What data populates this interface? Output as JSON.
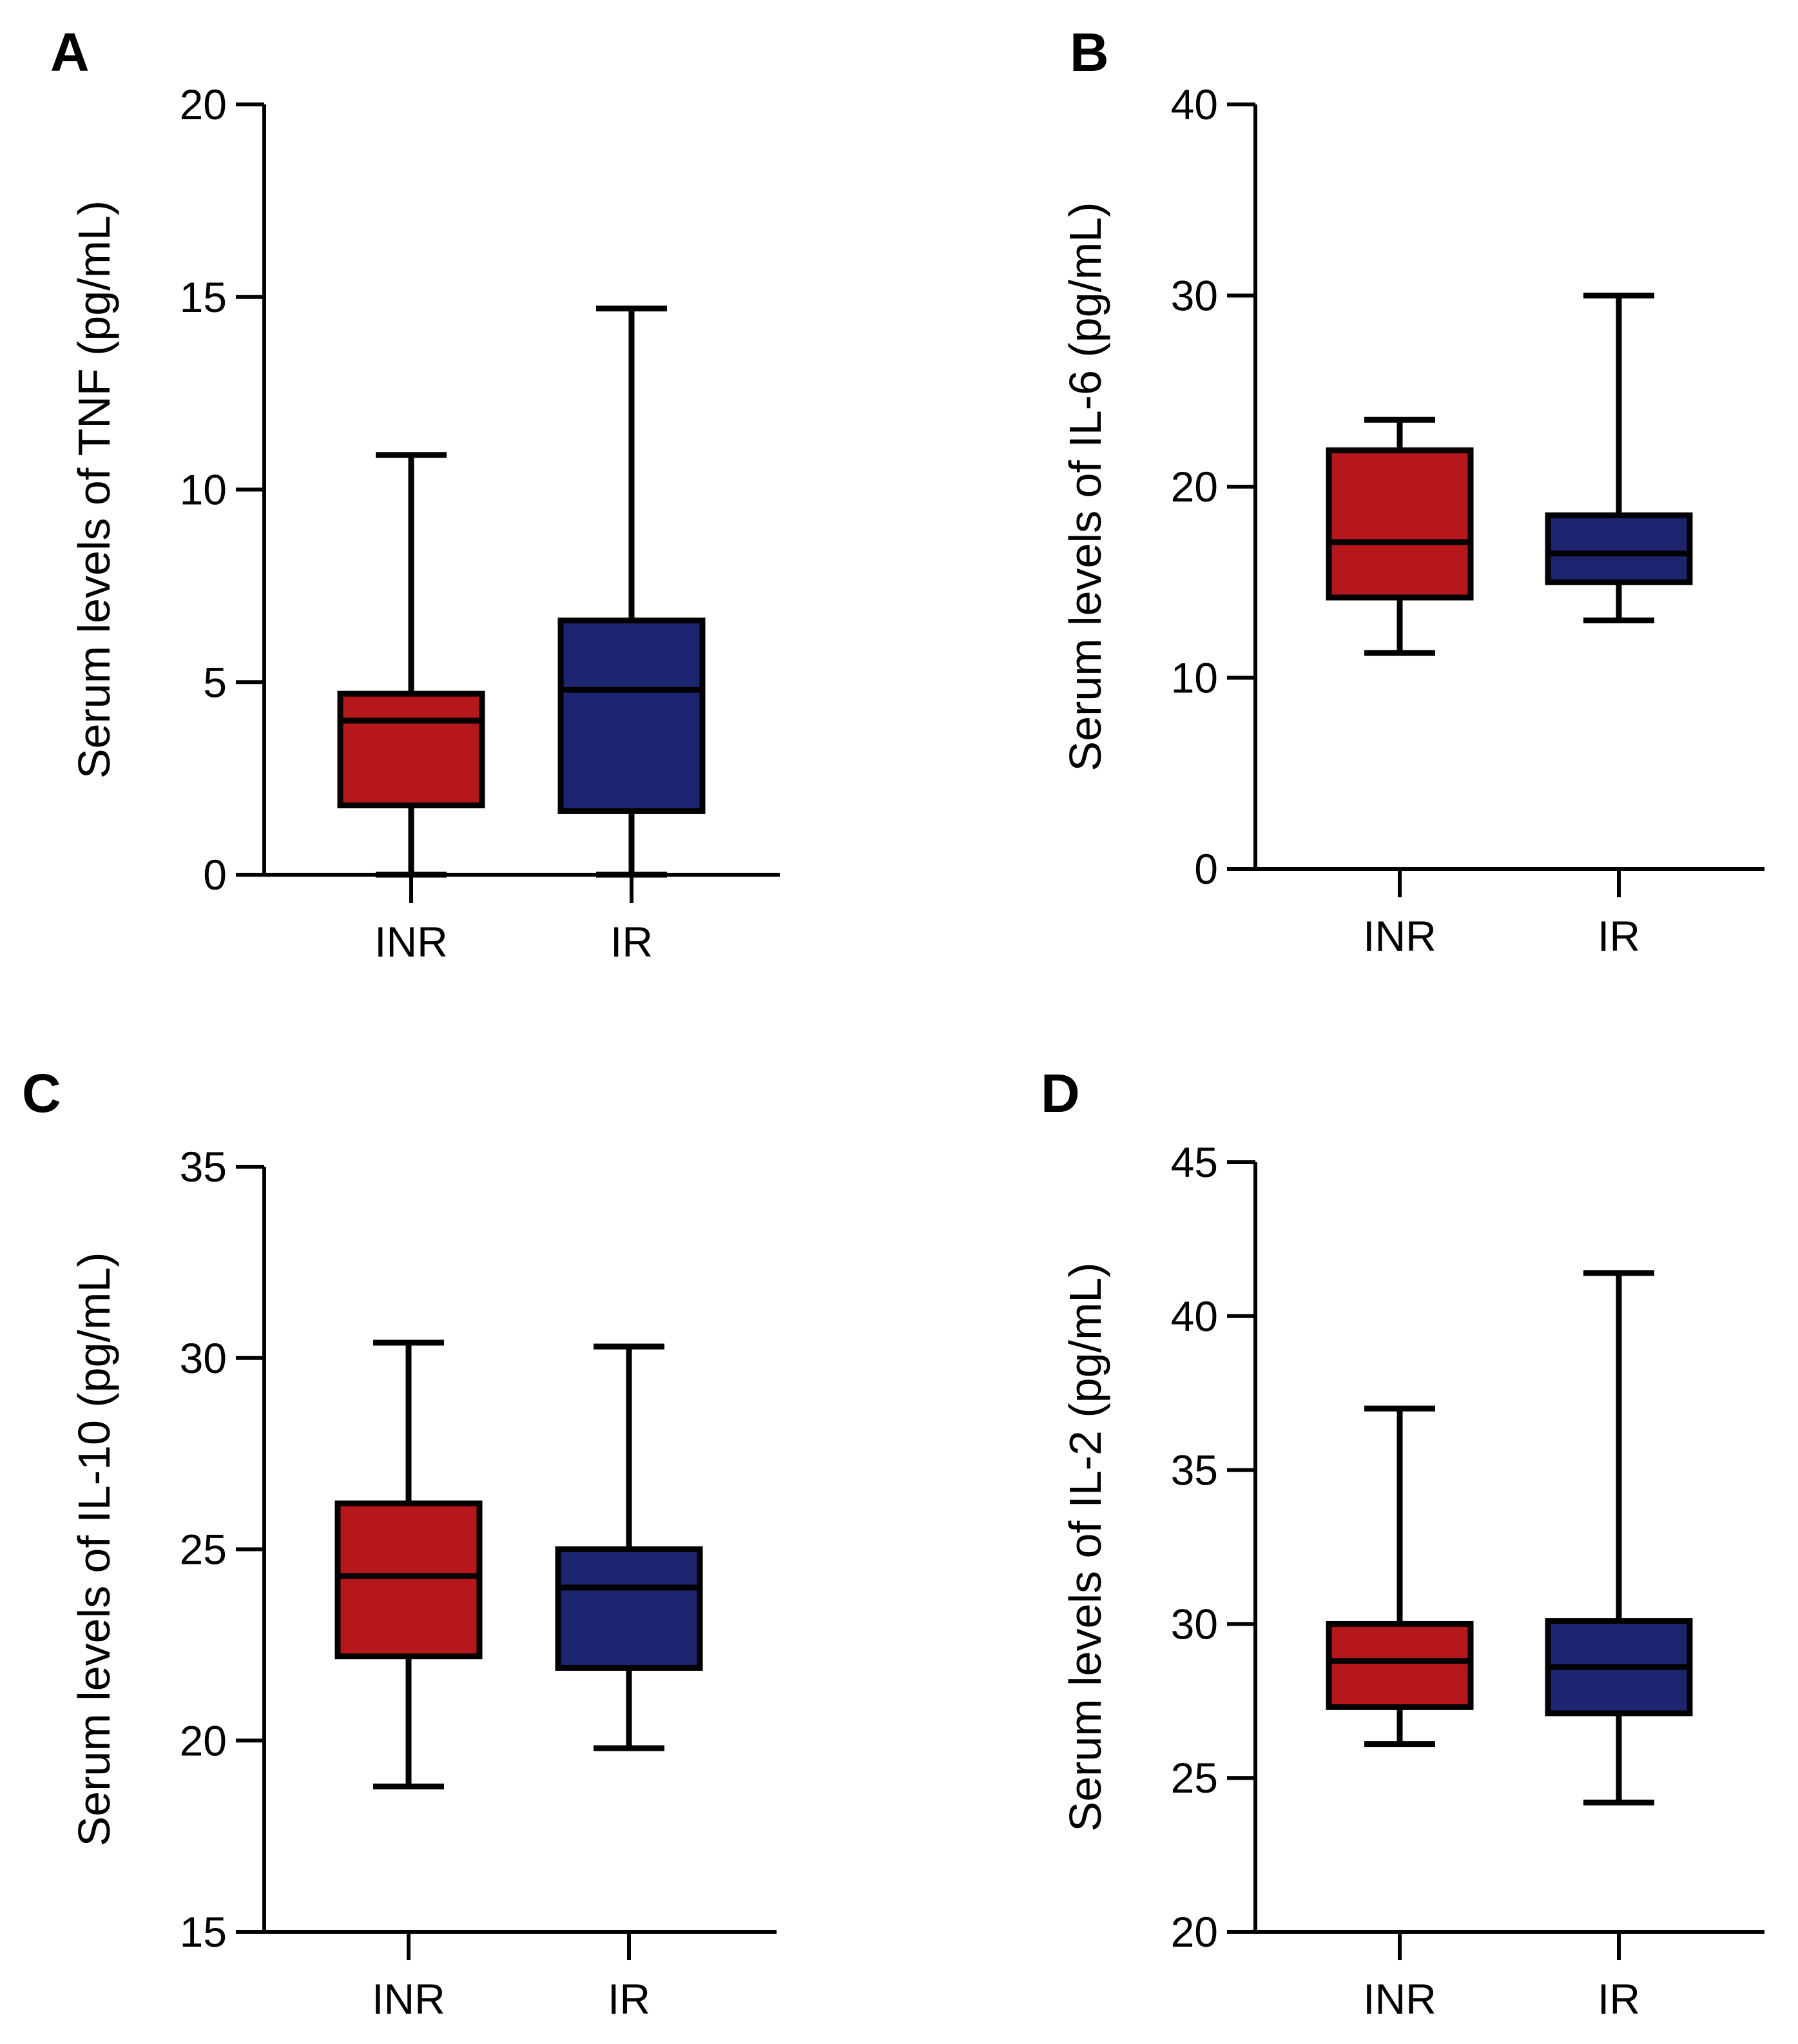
{
  "chart_data": [
    {
      "type": "box",
      "panel": "A",
      "ylabel": "Serum levels of TNF (pg/mL)",
      "ylim": [
        0,
        20
      ],
      "yticks": [
        0,
        5,
        10,
        15,
        20
      ],
      "categories": [
        "INR",
        "IR"
      ],
      "boxes": [
        {
          "name": "INR",
          "color": "#b5171b",
          "min": 0.0,
          "q1": 1.8,
          "median": 4.0,
          "q3": 4.7,
          "max": 10.9
        },
        {
          "name": "IR",
          "color": "#1d2571",
          "min": 0.0,
          "q1": 1.65,
          "median": 4.8,
          "q3": 6.6,
          "max": 14.7
        }
      ]
    },
    {
      "type": "box",
      "panel": "B",
      "ylabel": "Serum levels of IL-6 (pg/mL)",
      "ylim": [
        0,
        40
      ],
      "yticks": [
        0,
        10,
        20,
        30,
        40
      ],
      "categories": [
        "INR",
        "IR"
      ],
      "boxes": [
        {
          "name": "INR",
          "color": "#b5171b",
          "min": 11.3,
          "q1": 14.2,
          "median": 17.1,
          "q3": 21.9,
          "max": 23.5
        },
        {
          "name": "IR",
          "color": "#1d2571",
          "min": 13.0,
          "q1": 15.0,
          "median": 16.5,
          "q3": 18.5,
          "max": 30.0
        }
      ]
    },
    {
      "type": "box",
      "panel": "C",
      "ylabel": "Serum levels of IL-10 (pg/mL)",
      "ylim": [
        15,
        35
      ],
      "yticks": [
        15,
        20,
        25,
        30,
        35
      ],
      "categories": [
        "INR",
        "IR"
      ],
      "boxes": [
        {
          "name": "INR",
          "color": "#b5171b",
          "min": 18.8,
          "q1": 22.2,
          "median": 24.3,
          "q3": 26.2,
          "max": 30.4
        },
        {
          "name": "IR",
          "color": "#1d2571",
          "min": 19.8,
          "q1": 21.9,
          "median": 24.0,
          "q3": 25.0,
          "max": 30.3
        }
      ]
    },
    {
      "type": "box",
      "panel": "D",
      "ylabel": "Serum levels of IL-2 (pg/mL)",
      "ylim": [
        20,
        45
      ],
      "yticks": [
        20,
        25,
        30,
        35,
        40,
        45
      ],
      "categories": [
        "INR",
        "IR"
      ],
      "boxes": [
        {
          "name": "INR",
          "color": "#b5171b",
          "min": 26.1,
          "q1": 27.3,
          "median": 28.8,
          "q3": 30.0,
          "max": 37.0
        },
        {
          "name": "IR",
          "color": "#1d2571",
          "min": 24.2,
          "q1": 27.1,
          "median": 28.6,
          "q3": 30.1,
          "max": 41.4
        }
      ]
    }
  ]
}
